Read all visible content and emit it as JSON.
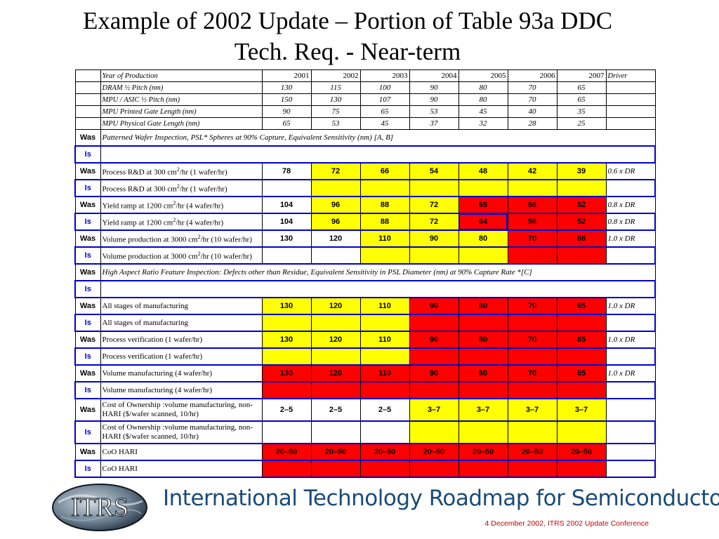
{
  "title_line1": "Example of 2002 Update – Portion of Table 93a  DDC",
  "title_line2": "Tech. Req. - Near-term",
  "header": {
    "label": "Year of Production",
    "years": [
      "2001",
      "2002",
      "2003",
      "2004",
      "2005",
      "2006",
      "2007"
    ],
    "driver": "Driver"
  },
  "nodes": [
    {
      "label": "DRAM ½ Pitch  (nm)",
      "values": [
        "130",
        "115",
        "100",
        "90",
        "80",
        "70",
        "65"
      ]
    },
    {
      "label": "MPU / ASIC ½ Pitch (nm)",
      "values": [
        "150",
        "130",
        "107",
        "90",
        "80",
        "70",
        "65"
      ]
    },
    {
      "label": "MPU Printed Gate Length (nm)",
      "values": [
        "90",
        "75",
        "65",
        "53",
        "45",
        "40",
        "35"
      ]
    },
    {
      "label": "MPU Physical Gate Length (nm)",
      "values": [
        "65",
        "53",
        "45",
        "37",
        "32",
        "28",
        "25"
      ]
    }
  ],
  "rows": [
    {
      "tag": "Was",
      "label": "Patterned Wafer Inspection, PSL* Spheres at 90% Capture, Equivalent Sensitivity (nm) [A, B]",
      "span": true
    },
    {
      "tag": "Is",
      "label": "",
      "span": true
    },
    {
      "tag": "Was",
      "label_pre": "Process R&D at 300 cm",
      "label_sup": "2",
      "label_post": "/hr (1 wafer/hr)",
      "values": [
        "78",
        "72",
        "66",
        "54",
        "48",
        "42",
        "39"
      ],
      "colors": [
        "",
        "y",
        "y",
        "y",
        "y",
        "y",
        "y"
      ],
      "driver": "0.6 x DR"
    },
    {
      "tag": "Is",
      "label_pre": "Process R&D at 300 cm",
      "label_sup": "2",
      "label_post": "/hr (1 wafer/hr)",
      "values": [
        "",
        "",
        "",
        "",
        "",
        "",
        ""
      ],
      "colors": [
        "",
        "y",
        "y",
        "y",
        "y",
        "y",
        "y"
      ],
      "driver": ""
    },
    {
      "tag": "Was",
      "label_pre": "Yield ramp at 1200 cm",
      "label_sup": "2",
      "label_post": "/hr (4 wafer/hr)",
      "values": [
        "104",
        "96",
        "88",
        "72",
        "65",
        "56",
        "52"
      ],
      "colors": [
        "",
        "y",
        "y",
        "y",
        "r",
        "r",
        "r"
      ],
      "driver": "0.8 x DR"
    },
    {
      "tag": "Is",
      "label_pre": "Yield ramp at 1200 cm",
      "label_sup": "2",
      "label_post": "/hr (4 wafer/hr)",
      "values": [
        "104",
        "96",
        "88",
        "72",
        "64",
        "56",
        "52"
      ],
      "colors": [
        "",
        "y",
        "y",
        "y",
        "r",
        "r",
        "r"
      ],
      "driver": "0.8 x DR",
      "hl": [
        4
      ]
    },
    {
      "tag": "Was",
      "label_pre": "Volume production at 3000 cm",
      "label_sup": "2",
      "label_post": "/hr (10 wafer/hr)",
      "values": [
        "130",
        "120",
        "110",
        "90",
        "80",
        "70",
        "66"
      ],
      "colors": [
        "",
        "",
        "y",
        "y",
        "y",
        "r",
        "r"
      ],
      "driver": "1.0 x DR"
    },
    {
      "tag": "Is",
      "label_pre": "Volume production at 3000 cm",
      "label_sup": "2",
      "label_post": "/hr (10 wafer/hr)",
      "values": [
        "",
        "",
        "",
        "",
        "",
        "",
        ""
      ],
      "colors": [
        "",
        "",
        "y",
        "y",
        "y",
        "r",
        "r"
      ],
      "driver": ""
    },
    {
      "tag": "Was",
      "label": "High Aspect Ratio Feature Inspection: Defects other than Residue, Equivalent Sensitivity in PSL Diameter (nm) at 90% Capture Rate *[C]",
      "span": true
    },
    {
      "tag": "Is",
      "label": "",
      "span": true
    },
    {
      "tag": "Was",
      "label": "All stages of manufacturing",
      "values": [
        "130",
        "120",
        "110",
        "90",
        "80",
        "70",
        "65"
      ],
      "colors": [
        "y",
        "y",
        "y",
        "r",
        "r",
        "r",
        "r"
      ],
      "driver": "1.0 x DR"
    },
    {
      "tag": "Is",
      "label": "All stages of manufacturing",
      "values": [
        "",
        "",
        "",
        "",
        "",
        "",
        ""
      ],
      "colors": [
        "y",
        "y",
        "y",
        "r",
        "r",
        "r",
        "r"
      ],
      "driver": ""
    },
    {
      "tag": "Was",
      "label": "Process verification (1 wafer/hr)",
      "values": [
        "130",
        "120",
        "110",
        "90",
        "80",
        "70",
        "65"
      ],
      "colors": [
        "y",
        "y",
        "y",
        "r",
        "r",
        "r",
        "r"
      ],
      "driver": "1.0 x DR"
    },
    {
      "tag": "Is",
      "label": "Process verification (1 wafer/hr)",
      "values": [
        "",
        "",
        "",
        "",
        "",
        "",
        ""
      ],
      "colors": [
        "y",
        "y",
        "y",
        "r",
        "r",
        "r",
        "r"
      ],
      "driver": ""
    },
    {
      "tag": "Was",
      "label": "Volume manufacturing (4 wafer/hr)",
      "values": [
        "130",
        "120",
        "110",
        "90",
        "80",
        "70",
        "65"
      ],
      "colors": [
        "r",
        "r",
        "r",
        "r",
        "r",
        "r",
        "r"
      ],
      "driver": "1.0 x DR"
    },
    {
      "tag": "Is",
      "label": "Volume manufacturing (4 wafer/hr)",
      "values": [
        "",
        "",
        "",
        "",
        "",
        "",
        ""
      ],
      "colors": [
        "r",
        "r",
        "r",
        "r",
        "r",
        "r",
        "r"
      ],
      "driver": ""
    },
    {
      "tag": "Was",
      "label": "Cost of Ownership :volume manufacturing, non-HARI ($/wafer scanned, 10/hr)",
      "values": [
        "2–5",
        "2–5",
        "2–5",
        "3–7",
        "3–7",
        "3–7",
        "3–7"
      ],
      "colors": [
        "",
        "",
        "",
        "y",
        "y",
        "y",
        "y"
      ],
      "driver": "",
      "tall": true
    },
    {
      "tag": "Is",
      "label": "Cost of Ownership :volume manufacturing, non-HARI ($/wafer scanned, 10/hr)",
      "values": [
        "",
        "",
        "",
        "",
        "",
        "",
        ""
      ],
      "colors": [
        "",
        "",
        "",
        "y",
        "y",
        "y",
        "y"
      ],
      "driver": "",
      "tall": true
    },
    {
      "tag": "Was",
      "label": "CoO HARI",
      "values": [
        "20–50",
        "20–50",
        "20–50",
        "20–50",
        "20–50",
        "20–50",
        "20–50"
      ],
      "colors": [
        "r",
        "r",
        "r",
        "r",
        "r",
        "r",
        "r"
      ],
      "driver": ""
    },
    {
      "tag": "Is",
      "label": "CoO HARI",
      "values": [
        "",
        "",
        "",
        "",
        "",
        "",
        ""
      ],
      "colors": [
        "r",
        "r",
        "r",
        "r",
        "r",
        "r",
        "r"
      ],
      "driver": ""
    }
  ],
  "footer": {
    "logo_text": "ITRS",
    "brand": "International Technology Roadmap for Semiconductors",
    "conference": "4 December 2002, ITRS 2002 Update Conference"
  },
  "colors": {
    "yellow": "#ffff00",
    "red": "#ff0000",
    "is_border": "#0000cc",
    "brand": "#1a4b7a"
  }
}
